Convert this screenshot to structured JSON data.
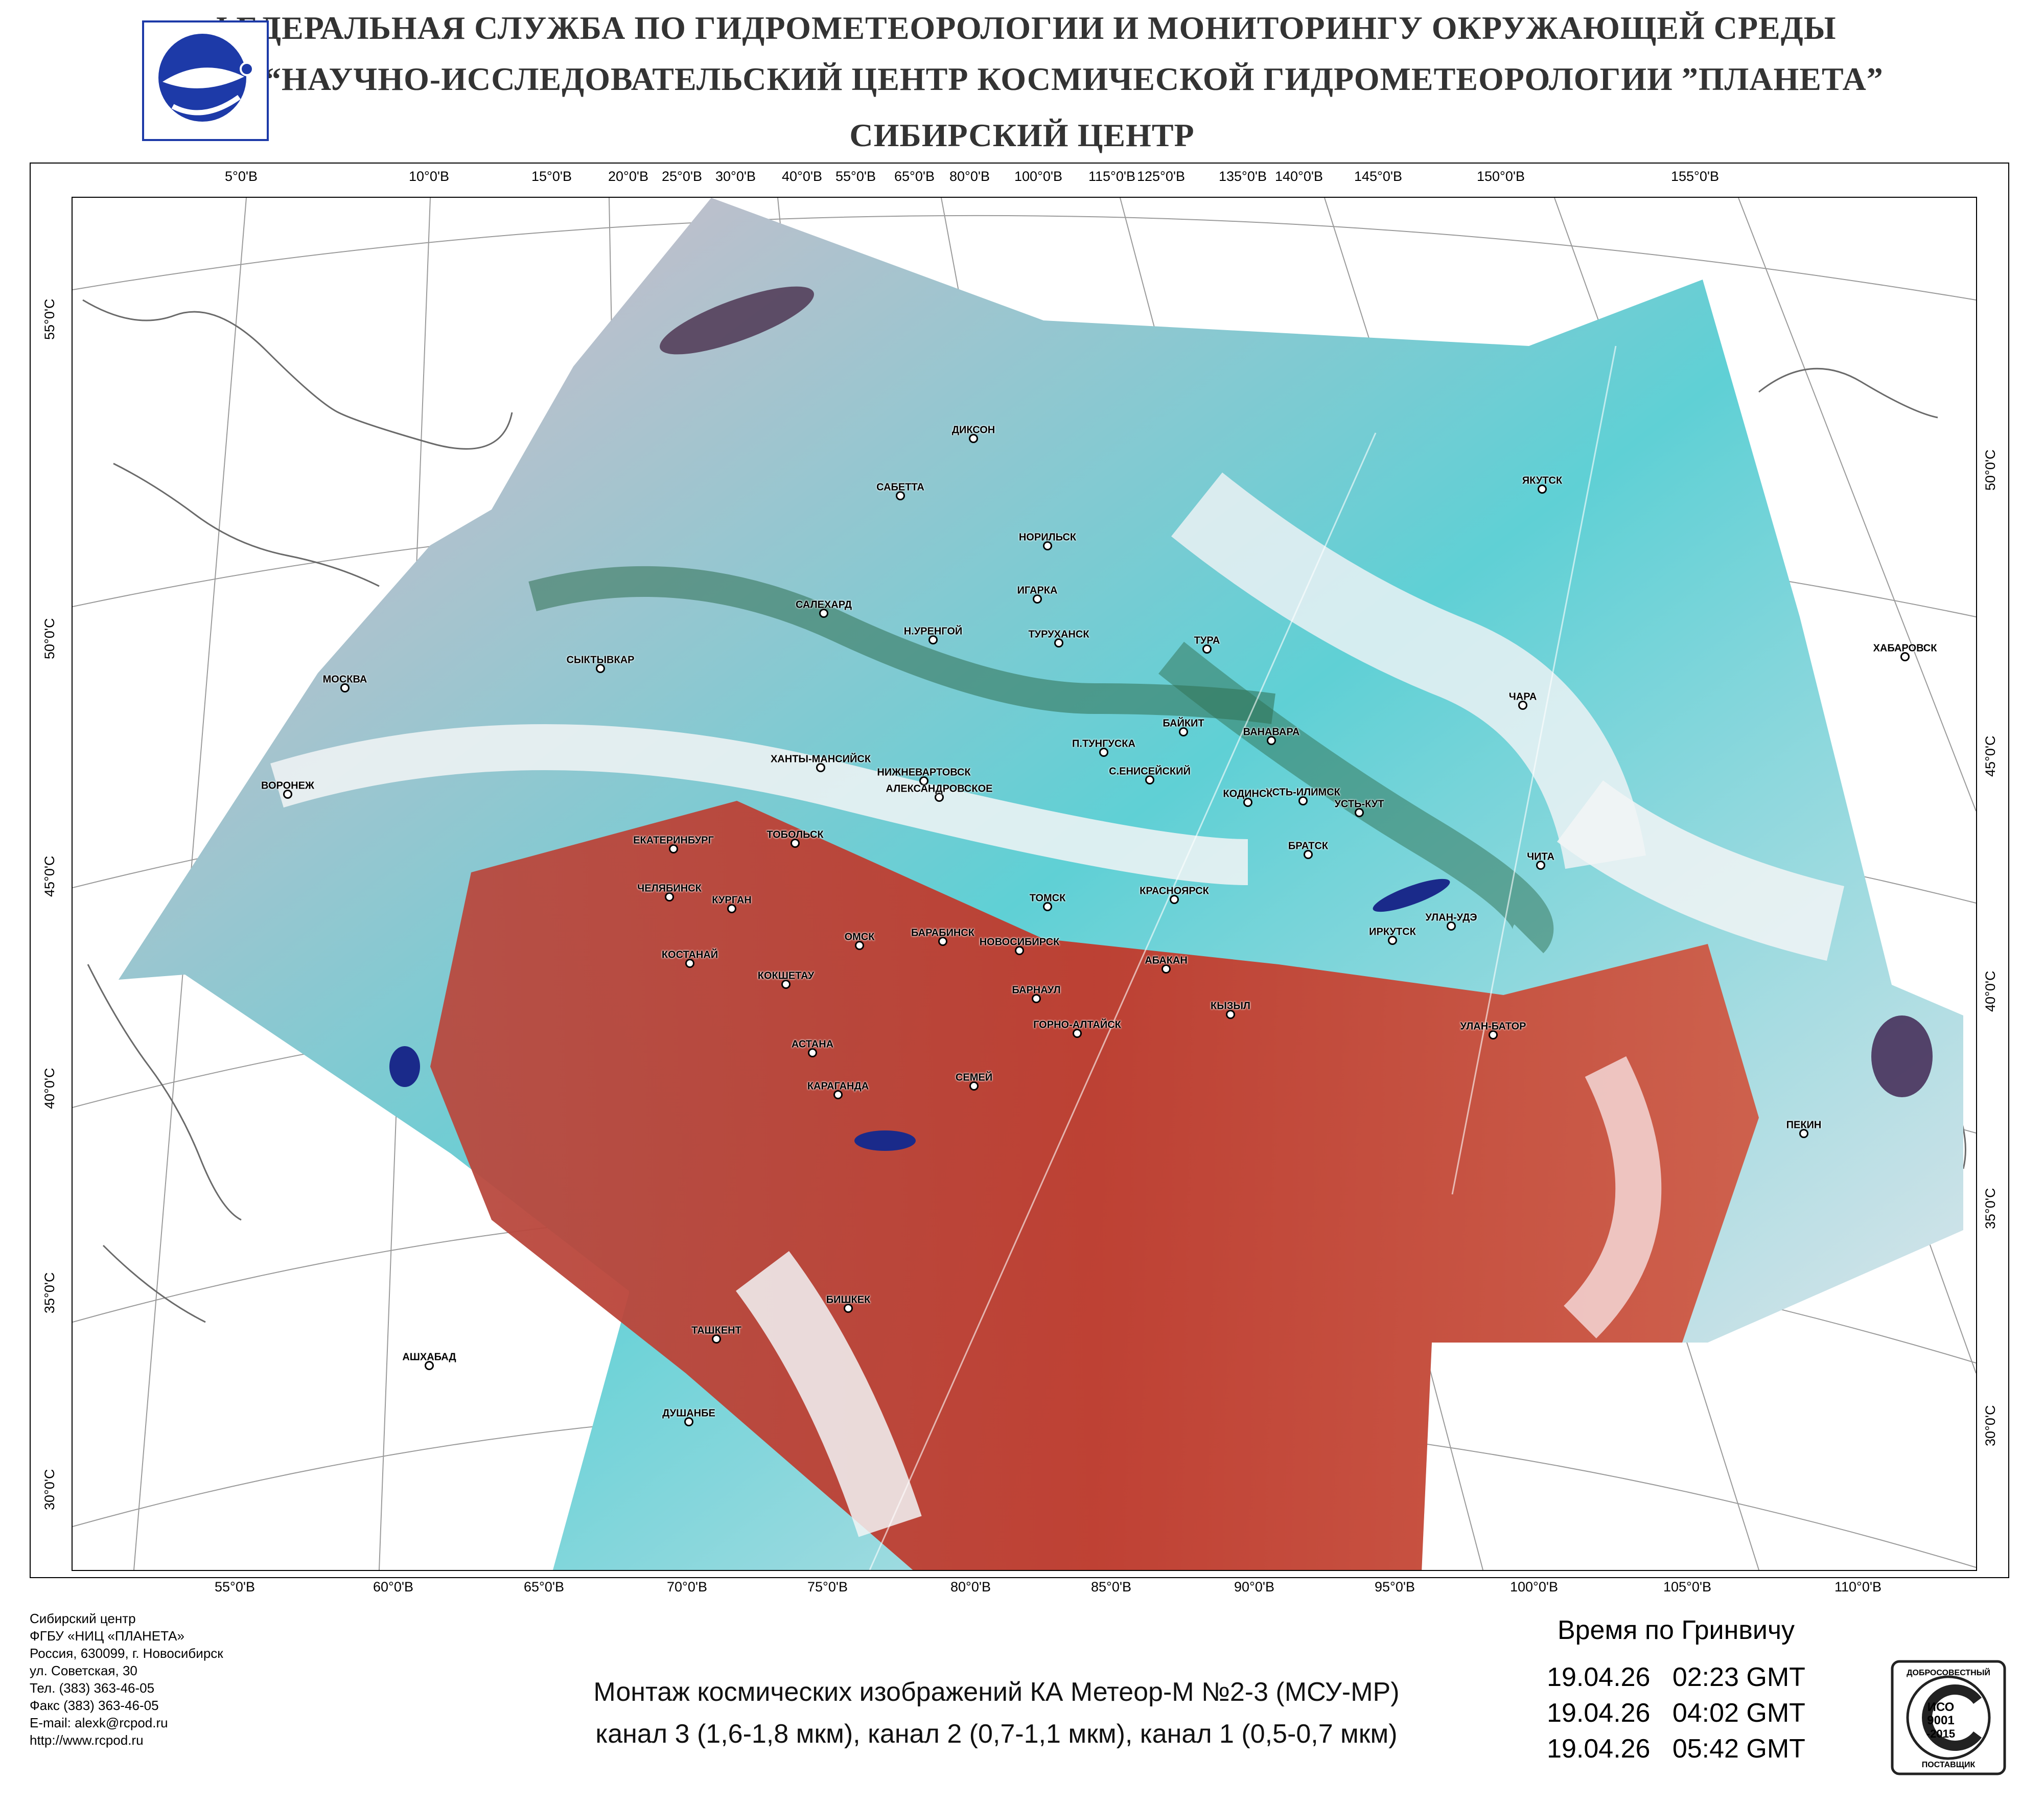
{
  "header": {
    "line1": "ФЕДЕРАЛЬНАЯ СЛУЖБА ПО ГИДРОМЕТЕОРОЛОГИИ И МОНИТОРИНГУ ОКРУЖАЮЩЕЙ СРЕДЫ",
    "line2": "ФГБУ “НАУЧНО-ИССЛЕДОВАТЕЛЬСКИЙ ЦЕНТР КОСМИЧЕСКОЙ ГИДРОМЕТЕОРОЛОГИИ ”ПЛАНЕТА”",
    "line3": "СИБИРСКИЙ  ЦЕНТР"
  },
  "map": {
    "top_lon_labels": [
      "5°0'В",
      "10°0'В",
      "15°0'В",
      "20°0'В",
      "25°0'В",
      "30°0'В",
      "40°0'В",
      "55°0'В",
      "65°0'В",
      "80°0'В",
      "100°0'В",
      "115°0'В",
      "125°0'В",
      "135°0'В",
      "140°0'В",
      "145°0'В",
      "150°0'В",
      "155°0'В"
    ],
    "bottom_lon_labels": [
      "55°0'В",
      "60°0'В",
      "65°0'В",
      "70°0'В",
      "75°0'В",
      "80°0'В",
      "85°0'В",
      "90°0'В",
      "95°0'В",
      "100°0'В",
      "105°0'В",
      "110°0'В"
    ],
    "left_lat_labels": [
      "55°0'С",
      "50°0'С",
      "45°0'С",
      "40°0'С",
      "35°0'С",
      "30°0'С"
    ],
    "right_lat_labels": [
      "50°0'С",
      "45°0'С",
      "40°0'С",
      "35°0'С",
      "30°0'С"
    ],
    "cities": [
      "ДИКСОН",
      "САБЕТТА",
      "НОРИЛЬСК",
      "ИГАРКА",
      "ТУРУХАНСК",
      "САЛЕХАРД",
      "Н.УРЕНГОЙ",
      "ТУРА",
      "ЯКУТСК",
      "СЫКТЫВКАР",
      "МОСКВА",
      "ХАБАРОВСК",
      "ЧАРА",
      "БАЙКИТ",
      "ВАНАВАРА",
      "П.ТУНГУСКА",
      "ХАНТЫ-МАНСИЙСК",
      "НИЖНЕВАРТОВСК",
      "ВОРОНЕЖ",
      "С.ЕНИСЕЙСКИЙ",
      "УСТЬ-ИЛИМСК",
      "АЛЕКСАНДРОВСКОЕ",
      "КОДИНСК",
      "УСТЬ-КУТ",
      "ТОБОЛЬСК",
      "ЕКАТЕРИНБУРГ",
      "ЧИТА",
      "БРАТСК",
      "ЧЕЛЯБИНСК",
      "КРАСНОЯРСК",
      "ТОМСК",
      "КУРГАН",
      "ОМСК",
      "НОВОСИБИРСК",
      "ИРКУТСК",
      "УЛАН-УДЭ",
      "БАРАБИНСК",
      "КОСТАНАЙ",
      "КОКШЕТАУ",
      "АБАКАН",
      "БАРНАУЛ",
      "КЫЗЫЛ",
      "ГОРНО-АЛТАЙСК",
      "УЛАН-БАТОР",
      "АСТАНА",
      "СЕМЕЙ",
      "КАРАГАНДА",
      "ПЕКИН",
      "БИШКЕК",
      "ТАШКЕНТ",
      "АШХАБАД",
      "ДУШАНБЕ"
    ]
  },
  "contact": {
    "lines": [
      "Сибирский центр",
      "ФГБУ «НИЦ «ПЛАНЕТА»",
      "Россия, 630099, г. Новосибирск",
      "ул. Советская, 30",
      "Тел. (383) 363-46-05",
      "Факс (383) 363-46-05",
      "E-mail: alexk@rcpod.ru",
      "http://www.rcpod.ru"
    ]
  },
  "caption": {
    "line1": "Монтаж космических изображений КА Метеор-М №2-3 (МСУ-МР)",
    "line2": "канал 3 (1,6-1,8 мкм), канал 2 (0,7-1,1 мкм), канал 1 (0,5-0,7 мкм)"
  },
  "time": {
    "heading": "Время по Гринвичу",
    "rows": [
      {
        "date": "19.04.26",
        "time": "02:23 GMT"
      },
      {
        "date": "19.04.26",
        "time": "04:02 GMT"
      },
      {
        "date": "19.04.26",
        "time": "05:42 GMT"
      }
    ]
  },
  "iso_badge": {
    "top": "ДОБРОСОВЕСТНЫЙ",
    "line1": "ИСО",
    "line2": "9001",
    "line3": "-2015",
    "bottom": "ПОСТАВЩИК"
  },
  "colors": {
    "cloud": "#f2f4f6",
    "snow_cyan": "#49c8d0",
    "land_red": "#c0392b",
    "vegetation": "#2f6f52",
    "water": "#1a2a8a"
  }
}
